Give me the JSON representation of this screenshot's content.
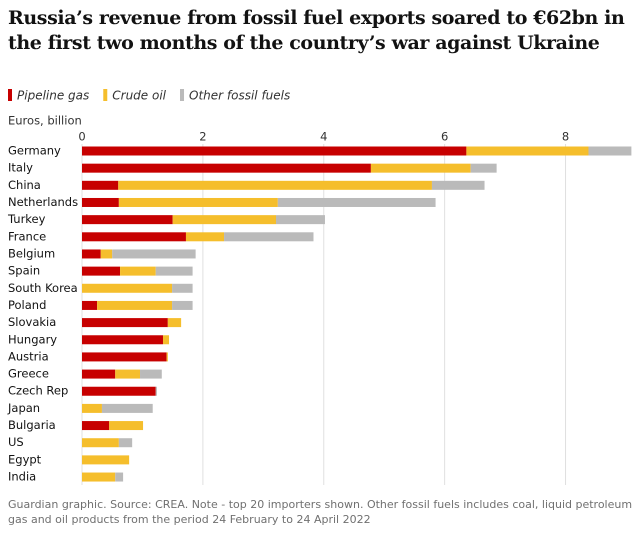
{
  "chart_data": {
    "type": "stacked-bar-horizontal",
    "title": "Russia’s revenue from fossil fuel exports soared to €62bn in the first two months of the country’s war against Ukraine",
    "xlabel": "Euros, billion",
    "note": "Guardian graphic. Source: CREA. Note - top 20 importers shown. Other fossil fuels includes coal, liquid petroleum gas and oil products from the period 24 February to 24 April 2022",
    "categories": [
      "Germany",
      "Italy",
      "China",
      "Netherlands",
      "Turkey",
      "France",
      "Belgium",
      "Spain",
      "South Korea",
      "Poland",
      "Slovakia",
      "Hungary",
      "Austria",
      "Greece",
      "Czech Rep",
      "Japan",
      "Bulgaria",
      "US",
      "Egypt",
      "India"
    ],
    "series": [
      {
        "name": "Pipeline gas",
        "color": "#c70000",
        "values": [
          6.36,
          4.78,
          0.6,
          0.61,
          1.5,
          1.72,
          0.31,
          0.63,
          0,
          0.25,
          1.42,
          1.34,
          1.4,
          0.55,
          1.22,
          0,
          0.45,
          0,
          0,
          0
        ]
      },
      {
        "name": "Crude oil",
        "color": "#f5be2c",
        "values": [
          2.02,
          1.65,
          5.19,
          2.63,
          1.71,
          0.63,
          0.19,
          0.59,
          1.49,
          1.24,
          0.22,
          0.1,
          0.02,
          0.41,
          0,
          0.33,
          0.56,
          0.61,
          0.78,
          0.55
        ]
      },
      {
        "name": "Other fossil fuels",
        "color": "#bababa",
        "values": [
          0.71,
          0.43,
          0.87,
          2.61,
          0.81,
          1.48,
          1.38,
          0.61,
          0.34,
          0.34,
          0,
          0,
          0,
          0.36,
          0.02,
          0.84,
          0,
          0.22,
          0,
          0.13
        ]
      }
    ],
    "xlim": [
      0,
      9.1
    ],
    "xticks": [
      0,
      2,
      4,
      6,
      8
    ],
    "grid": true
  }
}
